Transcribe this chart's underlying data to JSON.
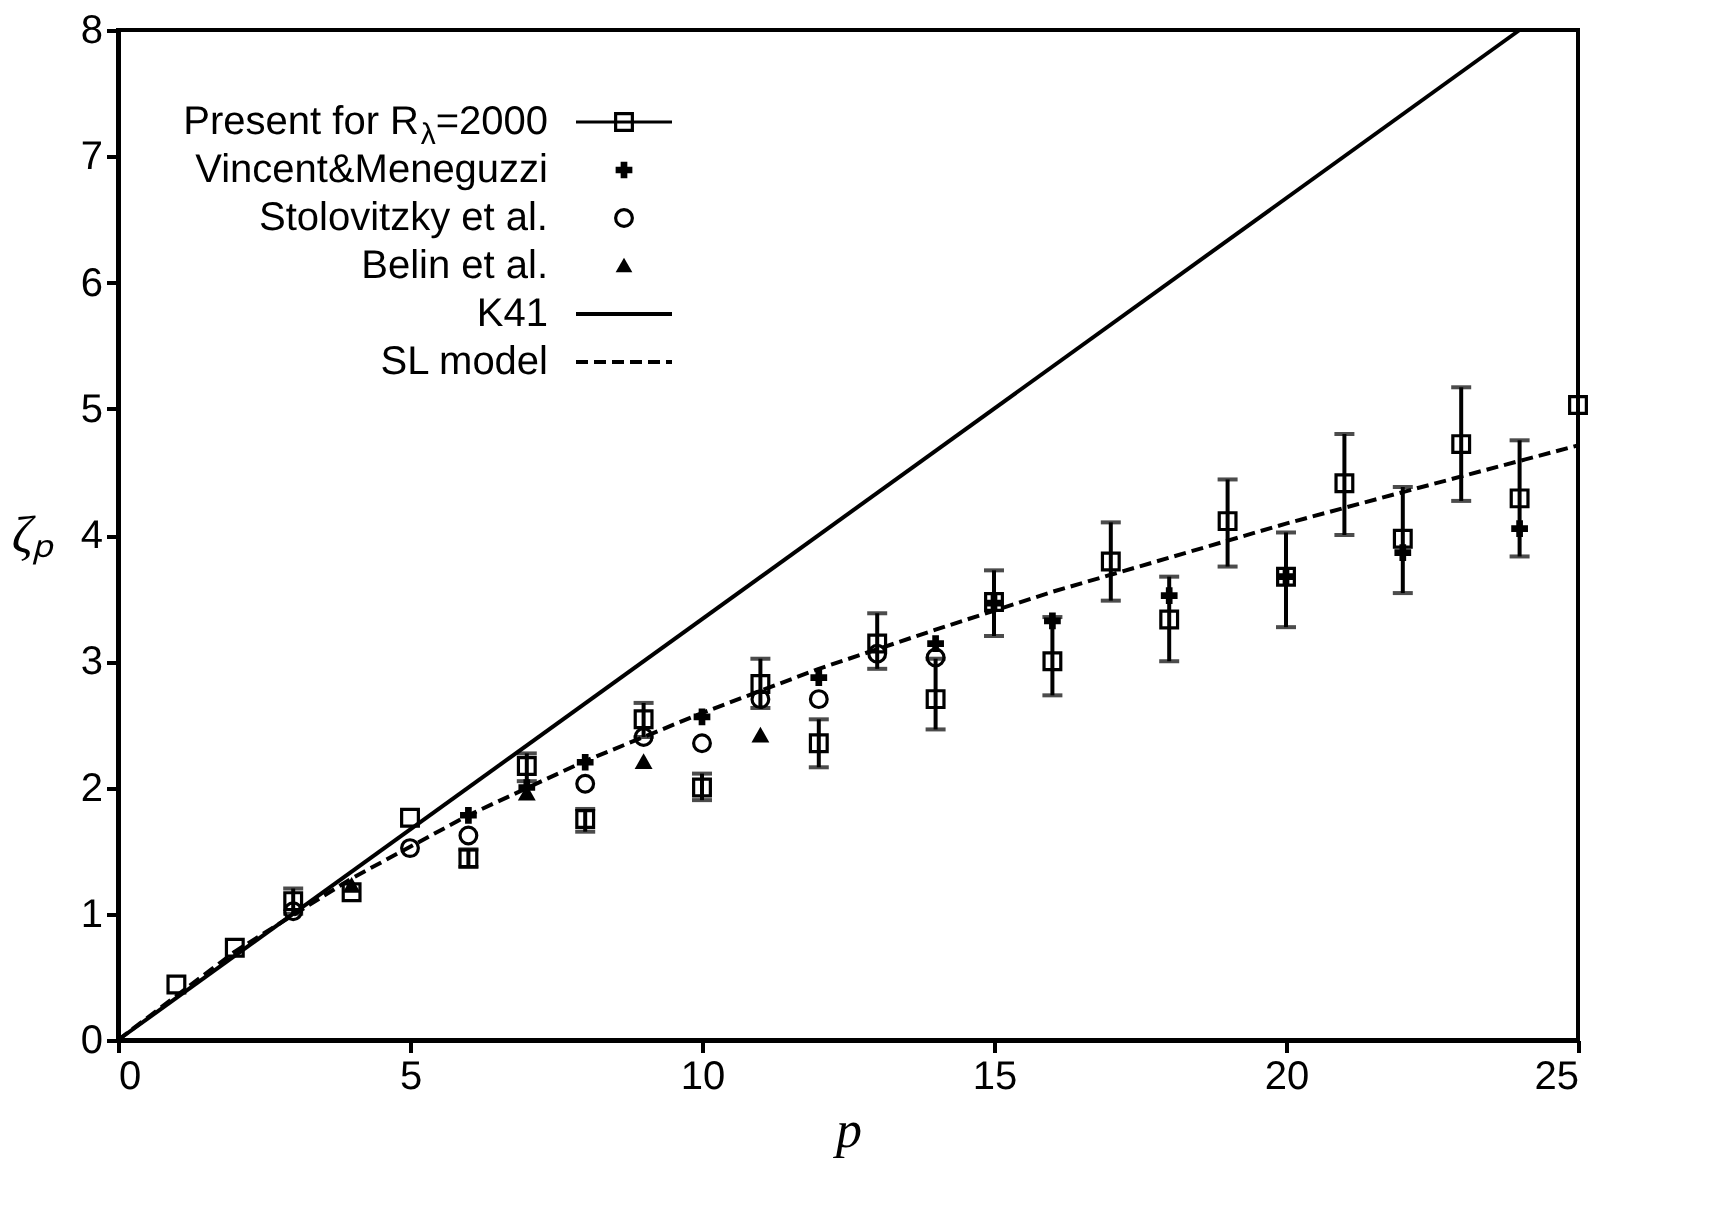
{
  "chart_data": {
    "type": "scatter",
    "xlabel": "p",
    "ylabel": "ζₚ",
    "xlim": [
      0,
      25
    ],
    "ylim": [
      0,
      8
    ],
    "xticks": [
      0,
      5,
      10,
      15,
      20,
      25
    ],
    "yticks": [
      0,
      1,
      2,
      3,
      4,
      5,
      6,
      7,
      8
    ],
    "grid": false,
    "legend": "top left",
    "series": [
      {
        "name": "Present for R$_{λ}$=2000",
        "marker": "square",
        "color": "#000000",
        "x": [
          1,
          2,
          3,
          4,
          5,
          6,
          7,
          8,
          9,
          10,
          11,
          12,
          13,
          14,
          15,
          16,
          17,
          18,
          19,
          20,
          21,
          22,
          23,
          24,
          25
        ],
        "values": [
          0.44,
          0.73,
          1.1,
          1.17,
          1.76,
          1.44,
          2.17,
          1.75,
          2.54,
          2.0,
          2.82,
          2.35,
          3.14,
          2.7,
          3.47,
          3.0,
          3.79,
          3.33,
          4.11,
          3.67,
          4.41,
          3.97,
          4.72,
          4.29,
          5.03
        ],
        "errors": [
          null,
          null,
          [
            1.0,
            1.2
          ],
          null,
          null,
          [
            1.37,
            1.51
          ],
          [
            2.05,
            2.27
          ],
          [
            1.65,
            1.83
          ],
          [
            2.4,
            2.67
          ],
          [
            1.9,
            2.11
          ],
          [
            2.63,
            3.02
          ],
          [
            2.16,
            2.54
          ],
          [
            2.94,
            3.38
          ],
          [
            2.46,
            3.02
          ],
          [
            3.2,
            3.72
          ],
          [
            2.73,
            3.35
          ],
          [
            3.48,
            4.1
          ],
          [
            3.0,
            3.67
          ],
          [
            3.75,
            4.44
          ],
          [
            3.27,
            4.02
          ],
          [
            4.0,
            4.8
          ],
          [
            3.54,
            4.38
          ],
          [
            4.27,
            5.17
          ],
          [
            3.83,
            4.75
          ],
          null
        ]
      },
      {
        "name": "Vincent&Meneguzzi",
        "marker": "cross",
        "color": "#000000",
        "x": [
          6,
          7,
          8,
          10,
          12,
          14,
          15,
          16,
          18,
          20,
          22,
          24
        ],
        "values": [
          1.78,
          2.0,
          2.2,
          2.56,
          2.87,
          3.14,
          3.46,
          3.32,
          3.52,
          3.67,
          3.86,
          4.05
        ]
      },
      {
        "name": "Stolovitzky et al.",
        "marker": "circle",
        "color": "#000000",
        "x": [
          3,
          5,
          6,
          8,
          9,
          10,
          11,
          12,
          13,
          14
        ],
        "values": [
          1.02,
          1.52,
          1.62,
          2.03,
          2.4,
          2.35,
          2.7,
          2.7,
          3.06,
          3.03
        ]
      },
      {
        "name": "Belin et al.",
        "marker": "triangle",
        "color": "#000000",
        "x": [
          4,
          7,
          9,
          11
        ],
        "values": [
          1.22,
          1.95,
          2.2,
          2.41
        ]
      },
      {
        "name": "K41",
        "type": "line",
        "line_style": "solid",
        "color": "#000000",
        "x": [
          0,
          24
        ],
        "values": [
          0,
          8
        ]
      },
      {
        "name": "SL model",
        "type": "line",
        "line_style": "dashed",
        "color": "#000000",
        "x": [
          0,
          2,
          4,
          6,
          8,
          10,
          12,
          14,
          16,
          18,
          20,
          22,
          25
        ],
        "values": [
          0,
          0.7,
          1.28,
          1.78,
          2.21,
          2.59,
          2.94,
          3.25,
          3.55,
          3.82,
          4.09,
          4.34,
          4.71
        ]
      }
    ]
  }
}
